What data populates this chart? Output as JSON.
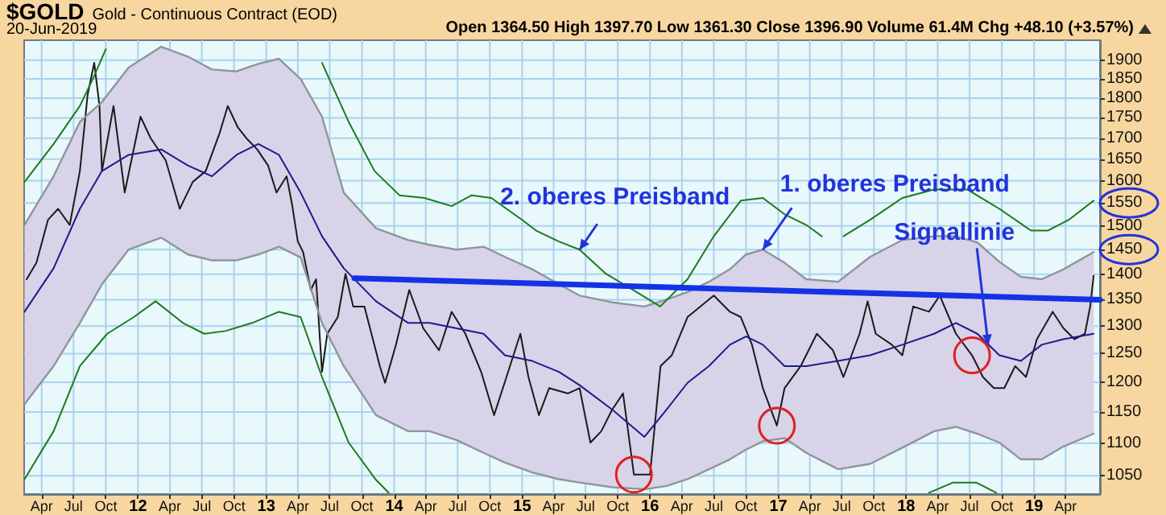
{
  "chart_data": {
    "type": "line",
    "title": "$GOLD",
    "subtitle": "Gold - Continuous Contract (EOD)",
    "annotations": [
      "20-Jun-2019",
      "Open 1364.50 High 1397.70 Low 1361.30 Close 1396.90 Volume 61.4M Chg +48.10 (+3.57%)",
      {
        "text": "2. oberes Preisband",
        "x": "2015-06-14",
        "y": 1450
      },
      {
        "text": "1. oberes Preisband",
        "x": "2016-11-18",
        "y": 1450
      },
      {
        "text": "Signallinie",
        "x": "2018-08-23",
        "y": 1266
      }
    ],
    "xlim": [
      "2011-02-10",
      "2019-07-08"
    ],
    "xticks": [
      {
        "value": "2011-04-01",
        "label": "Apr"
      },
      {
        "value": "2011-07-01",
        "label": "Jul"
      },
      {
        "value": "2011-10-01",
        "label": "Oct"
      },
      {
        "value": "2012-01-01",
        "label": "12"
      },
      {
        "value": "2012-04-01",
        "label": "Apr"
      },
      {
        "value": "2012-07-01",
        "label": "Jul"
      },
      {
        "value": "2012-10-01",
        "label": "Oct"
      },
      {
        "value": "2013-01-01",
        "label": "13"
      },
      {
        "value": "2013-04-01",
        "label": "Apr"
      },
      {
        "value": "2013-07-01",
        "label": "Jul"
      },
      {
        "value": "2013-10-01",
        "label": "Oct"
      },
      {
        "value": "2014-01-01",
        "label": "14"
      },
      {
        "value": "2014-04-01",
        "label": "Apr"
      },
      {
        "value": "2014-07-01",
        "label": "Jul"
      },
      {
        "value": "2014-10-01",
        "label": "Oct"
      },
      {
        "value": "2015-01-01",
        "label": "15"
      },
      {
        "value": "2015-04-01",
        "label": "Apr"
      },
      {
        "value": "2015-07-01",
        "label": "Jul"
      },
      {
        "value": "2015-10-01",
        "label": "Oct"
      },
      {
        "value": "2016-01-01",
        "label": "16"
      },
      {
        "value": "2016-04-01",
        "label": "Apr"
      },
      {
        "value": "2016-07-01",
        "label": "Jul"
      },
      {
        "value": "2016-10-01",
        "label": "Oct"
      },
      {
        "value": "2017-01-01",
        "label": "17"
      },
      {
        "value": "2017-04-01",
        "label": "Apr"
      },
      {
        "value": "2017-07-01",
        "label": "Jul"
      },
      {
        "value": "2017-10-01",
        "label": "Oct"
      },
      {
        "value": "2018-01-01",
        "label": "18"
      },
      {
        "value": "2018-04-01",
        "label": "Apr"
      },
      {
        "value": "2018-07-01",
        "label": "Jul"
      },
      {
        "value": "2018-10-01",
        "label": "Oct"
      },
      {
        "value": "2019-01-01",
        "label": "19"
      },
      {
        "value": "2019-04-01",
        "label": "Apr"
      }
    ],
    "ylim": [
      1023,
      1955
    ],
    "yticks": [
      1050,
      1100,
      1150,
      1200,
      1250,
      1300,
      1350,
      1400,
      1450,
      1500,
      1550,
      1600,
      1650,
      1700,
      1750,
      1800,
      1850,
      1900
    ],
    "log": "y",
    "grid": true,
    "series": [
      {
        "color": "#1a1a1a",
        "x": [
          "2011-02-17",
          "2011-03-17",
          "2011-04-19",
          "2011-05-18",
          "2011-06-20",
          "2011-07-19",
          "2011-08-10",
          "2011-08-29",
          "2011-09-13",
          "2011-09-20",
          "2011-10-23",
          "2011-11-24",
          "2012-01-08",
          "2012-02-06",
          "2012-03-20",
          "2012-04-29",
          "2012-06-05",
          "2012-07-12",
          "2012-08-21",
          "2012-09-13",
          "2012-10-12",
          "2012-11-05",
          "2012-12-06",
          "2013-01-06",
          "2013-01-30",
          "2013-02-28",
          "2013-03-15",
          "2013-04-01",
          "2013-04-16",
          "2013-05-08",
          "2013-05-23",
          "2013-06-09",
          "2013-06-24",
          "2013-07-24",
          "2013-08-15",
          "2013-09-06",
          "2013-10-08",
          "2013-11-21",
          "2013-12-06",
          "2014-01-06",
          "2014-02-13",
          "2014-03-25",
          "2014-05-09",
          "2014-06-14",
          "2014-07-23",
          "2014-09-06",
          "2014-10-13",
          "2014-11-12",
          "2014-12-27",
          "2015-01-19",
          "2015-02-18",
          "2015-03-19",
          "2015-05-12",
          "2015-06-14",
          "2015-07-15",
          "2015-08-15",
          "2015-09-15",
          "2015-10-16",
          "2015-11-16",
          "2016-01-01",
          "2016-01-31",
          "2016-03-03",
          "2016-04-17",
          "2016-07-01",
          "2016-08-16",
          "2016-09-16",
          "2016-10-18",
          "2016-11-18",
          "2016-12-28",
          "2017-01-19",
          "2017-03-06",
          "2017-04-21",
          "2017-06-06",
          "2017-07-06",
          "2017-08-21",
          "2017-09-13",
          "2017-10-06",
          "2017-11-21",
          "2017-12-21",
          "2018-01-21",
          "2018-03-07",
          "2018-04-07",
          "2018-05-23",
          "2018-07-08",
          "2018-08-08",
          "2018-09-08",
          "2018-10-08",
          "2018-11-08",
          "2018-12-09",
          "2019-01-09",
          "2019-02-23",
          "2019-03-26",
          "2019-04-26",
          "2019-05-26",
          "2019-06-10",
          "2019-06-20"
        ],
        "values": [
          1390,
          1423,
          1513,
          1537,
          1502,
          1622,
          1808,
          1893,
          1780,
          1622,
          1780,
          1573,
          1753,
          1700,
          1647,
          1537,
          1597,
          1622,
          1713,
          1780,
          1726,
          1700,
          1673,
          1635,
          1573,
          1610,
          1549,
          1467,
          1445,
          1369,
          1390,
          1218,
          1286,
          1317,
          1401,
          1337,
          1337,
          1228,
          1199,
          1266,
          1369,
          1296,
          1256,
          1327,
          1286,
          1218,
          1145,
          1199,
          1286,
          1209,
          1145,
          1190,
          1181,
          1190,
          1101,
          1119,
          1154,
          1181,
          1052,
          1052,
          1228,
          1247,
          1317,
          1358,
          1327,
          1317,
          1266,
          1190,
          1128,
          1190,
          1228,
          1286,
          1256,
          1209,
          1286,
          1347,
          1286,
          1266,
          1247,
          1337,
          1327,
          1358,
          1286,
          1247,
          1209,
          1190,
          1190,
          1228,
          1209,
          1276,
          1327,
          1296,
          1276,
          1286,
          1337,
          1397
        ]
      },
      {
        "color": "#1c1c8c",
        "x": [
          "2011-02-11",
          "2011-05-05",
          "2011-07-19",
          "2011-09-20",
          "2011-12-05",
          "2012-03-07",
          "2012-05-22",
          "2012-07-30",
          "2012-10-08",
          "2012-12-09",
          "2013-02-06",
          "2013-04-09",
          "2013-06-09",
          "2013-08-10",
          "2013-11-10",
          "2014-02-10",
          "2014-04-12",
          "2014-06-28",
          "2014-09-13",
          "2014-11-13",
          "2015-01-30",
          "2015-04-16",
          "2015-06-14",
          "2015-09-15",
          "2015-12-16",
          "2016-02-17",
          "2016-04-17",
          "2016-06-17",
          "2016-08-16",
          "2016-10-01",
          "2016-11-18",
          "2017-01-19",
          "2017-03-22",
          "2017-06-21",
          "2017-09-20",
          "2017-12-21",
          "2018-03-22",
          "2018-05-23",
          "2018-07-23",
          "2018-09-24",
          "2018-11-24",
          "2019-01-23",
          "2019-03-26",
          "2019-06-20"
        ],
        "values": [
          1327,
          1412,
          1537,
          1622,
          1660,
          1673,
          1635,
          1610,
          1660,
          1686,
          1660,
          1573,
          1478,
          1412,
          1347,
          1306,
          1306,
          1296,
          1286,
          1247,
          1237,
          1218,
          1195,
          1154,
          1110,
          1154,
          1199,
          1228,
          1266,
          1281,
          1266,
          1228,
          1228,
          1237,
          1247,
          1266,
          1286,
          1306,
          1286,
          1247,
          1237,
          1266,
          1276,
          1286
        ],
        "upper": [
          1502,
          1610,
          1740,
          1790,
          1880,
          1937,
          1910,
          1875,
          1870,
          1890,
          1904,
          1850,
          1753,
          1573,
          1495,
          1470,
          1460,
          1450,
          1456,
          1435,
          1410,
          1380,
          1358,
          1345,
          1337,
          1350,
          1365,
          1385,
          1410,
          1440,
          1450,
          1423,
          1390,
          1385,
          1435,
          1470,
          1478,
          1478,
          1465,
          1425,
          1395,
          1390,
          1410,
          1445
        ],
        "lower": [
          1163,
          1228,
          1306,
          1380,
          1450,
          1475,
          1440,
          1428,
          1428,
          1440,
          1456,
          1434,
          1306,
          1228,
          1145,
          1119,
          1119,
          1105,
          1085,
          1070,
          1055,
          1045,
          1040,
          1033,
          1030,
          1035,
          1045,
          1060,
          1075,
          1090,
          1103,
          1108,
          1085,
          1060,
          1068,
          1093,
          1119,
          1126,
          1115,
          1101,
          1075,
          1075,
          1095,
          1115
        ]
      },
      {
        "color": "#8d969b",
        "x": [
          "2011-02-11",
          "2011-05-05",
          "2011-07-19",
          "2011-09-20",
          "2011-12-05",
          "2012-03-07",
          "2012-05-22",
          "2012-07-30",
          "2012-10-08",
          "2012-12-09",
          "2013-02-06",
          "2013-04-09",
          "2013-06-09",
          "2013-08-10",
          "2013-11-10",
          "2014-02-10",
          "2014-04-12",
          "2014-06-28",
          "2014-09-13",
          "2014-11-13",
          "2015-01-30",
          "2015-04-16",
          "2015-06-14",
          "2015-09-15",
          "2015-12-16",
          "2016-02-17",
          "2016-04-17",
          "2016-06-17",
          "2016-08-16",
          "2016-10-01",
          "2016-11-18",
          "2017-01-19",
          "2017-03-22",
          "2017-06-21",
          "2017-09-20",
          "2017-12-21",
          "2018-03-22",
          "2018-05-23",
          "2018-07-23",
          "2018-09-24",
          "2018-11-24",
          "2019-01-23",
          "2019-03-26",
          "2019-06-20"
        ],
        "values": [
          1502,
          1610,
          1740,
          1790,
          1880,
          1937,
          1910,
          1875,
          1870,
          1890,
          1904,
          1850,
          1753,
          1573,
          1495,
          1470,
          1460,
          1450,
          1456,
          1435,
          1410,
          1380,
          1358,
          1345,
          1337,
          1350,
          1365,
          1385,
          1410,
          1440,
          1450,
          1423,
          1390,
          1385,
          1435,
          1470,
          1478,
          1478,
          1465,
          1425,
          1395,
          1390,
          1410,
          1445
        ]
      },
      {
        "color": "#8d969b",
        "x": [
          "2011-02-11",
          "2011-05-05",
          "2011-07-19",
          "2011-09-20",
          "2011-12-05",
          "2012-03-07",
          "2012-05-22",
          "2012-07-30",
          "2012-10-08",
          "2012-12-09",
          "2013-02-06",
          "2013-04-09",
          "2013-06-09",
          "2013-08-10",
          "2013-11-10",
          "2014-02-10",
          "2014-04-12",
          "2014-06-28",
          "2014-09-13",
          "2014-11-13",
          "2015-01-30",
          "2015-04-16",
          "2015-06-14",
          "2015-09-15",
          "2015-12-16",
          "2016-02-17",
          "2016-04-17",
          "2016-06-17",
          "2016-08-16",
          "2016-10-01",
          "2016-11-18",
          "2017-01-19",
          "2017-03-22",
          "2017-06-21",
          "2017-09-20",
          "2017-12-21",
          "2018-03-22",
          "2018-05-23",
          "2018-07-23",
          "2018-09-24",
          "2018-11-24",
          "2019-01-23",
          "2019-03-26",
          "2019-06-20"
        ],
        "values": [
          1163,
          1228,
          1306,
          1380,
          1450,
          1475,
          1440,
          1428,
          1428,
          1440,
          1456,
          1434,
          1306,
          1228,
          1145,
          1119,
          1119,
          1105,
          1085,
          1070,
          1055,
          1045,
          1040,
          1033,
          1030,
          1035,
          1045,
          1060,
          1075,
          1090,
          1103,
          1108,
          1085,
          1060,
          1068,
          1093,
          1119,
          1126,
          1115,
          1101,
          1075,
          1075,
          1095,
          1115
        ]
      },
      {
        "color": "#1d7a1d",
        "x": [
          "2011-02-11",
          "2011-05-05",
          "2011-07-19",
          "2011-08-25",
          "2011-10-01",
          "2012-06-01",
          "2013-06-09",
          "2013-08-24",
          "2013-11-06",
          "2014-01-16",
          "2014-03-28",
          "2014-06-14",
          "2014-08-10",
          "2014-10-05",
          "2015-01-01",
          "2015-02-10",
          "2015-04-16",
          "2015-06-14",
          "2015-08-28",
          "2015-11-14",
          "2016-01-30",
          "2016-04-17",
          "2016-07-01",
          "2016-09-16",
          "2016-11-18",
          "2017-01-19",
          "2017-03-22",
          "2017-05-05",
          "2017-06-06",
          "2017-07-06",
          "2017-09-20",
          "2017-12-21",
          "2018-03-22",
          "2018-06-24",
          "2018-09-24",
          "2018-12-23",
          "2019-02-09",
          "2019-04-10",
          "2019-06-20"
        ],
        "values": [
          1597,
          1686,
          1780,
          1850,
          1930,
          null,
          1893,
          1740,
          1622,
          1567,
          1561,
          1543,
          1567,
          1561,
          1513,
          1490,
          1467,
          1450,
          1401,
          1369,
          1337,
          1390,
          1478,
          1555,
          1561,
          1525,
          1502,
          1478,
          null,
          1478,
          1513,
          1561,
          1580,
          1580,
          1537,
          1490,
          1490,
          1513,
          1555
        ]
      },
      {
        "color": "#1d7a1d",
        "x": [
          "2011-02-11",
          "2011-05-05",
          "2011-07-19",
          "2011-10-05",
          "2011-12-20",
          "2012-02-20",
          "2012-05-08",
          "2012-07-08",
          "2012-09-06",
          "2012-11-22",
          "2013-02-06",
          "2013-04-09",
          "2013-06-09",
          "2013-08-24",
          "2013-11-10",
          "2013-12-16",
          "2014-02-01",
          "2018-03-07",
          "2018-05-15",
          "2018-07-20",
          "2018-09-15"
        ],
        "values": [
          1045,
          1119,
          1228,
          1286,
          1317,
          1347,
          1306,
          1286,
          1291,
          1306,
          1327,
          1317,
          1209,
          1101,
          1044,
          1025,
          null,
          1025,
          1040,
          1040,
          1025
        ]
      },
      {
        "color": "#1432e6",
        "x": [
          "2013-09-09",
          "2019-07-08"
        ],
        "values": [
          1392,
          1350
        ]
      }
    ]
  }
}
